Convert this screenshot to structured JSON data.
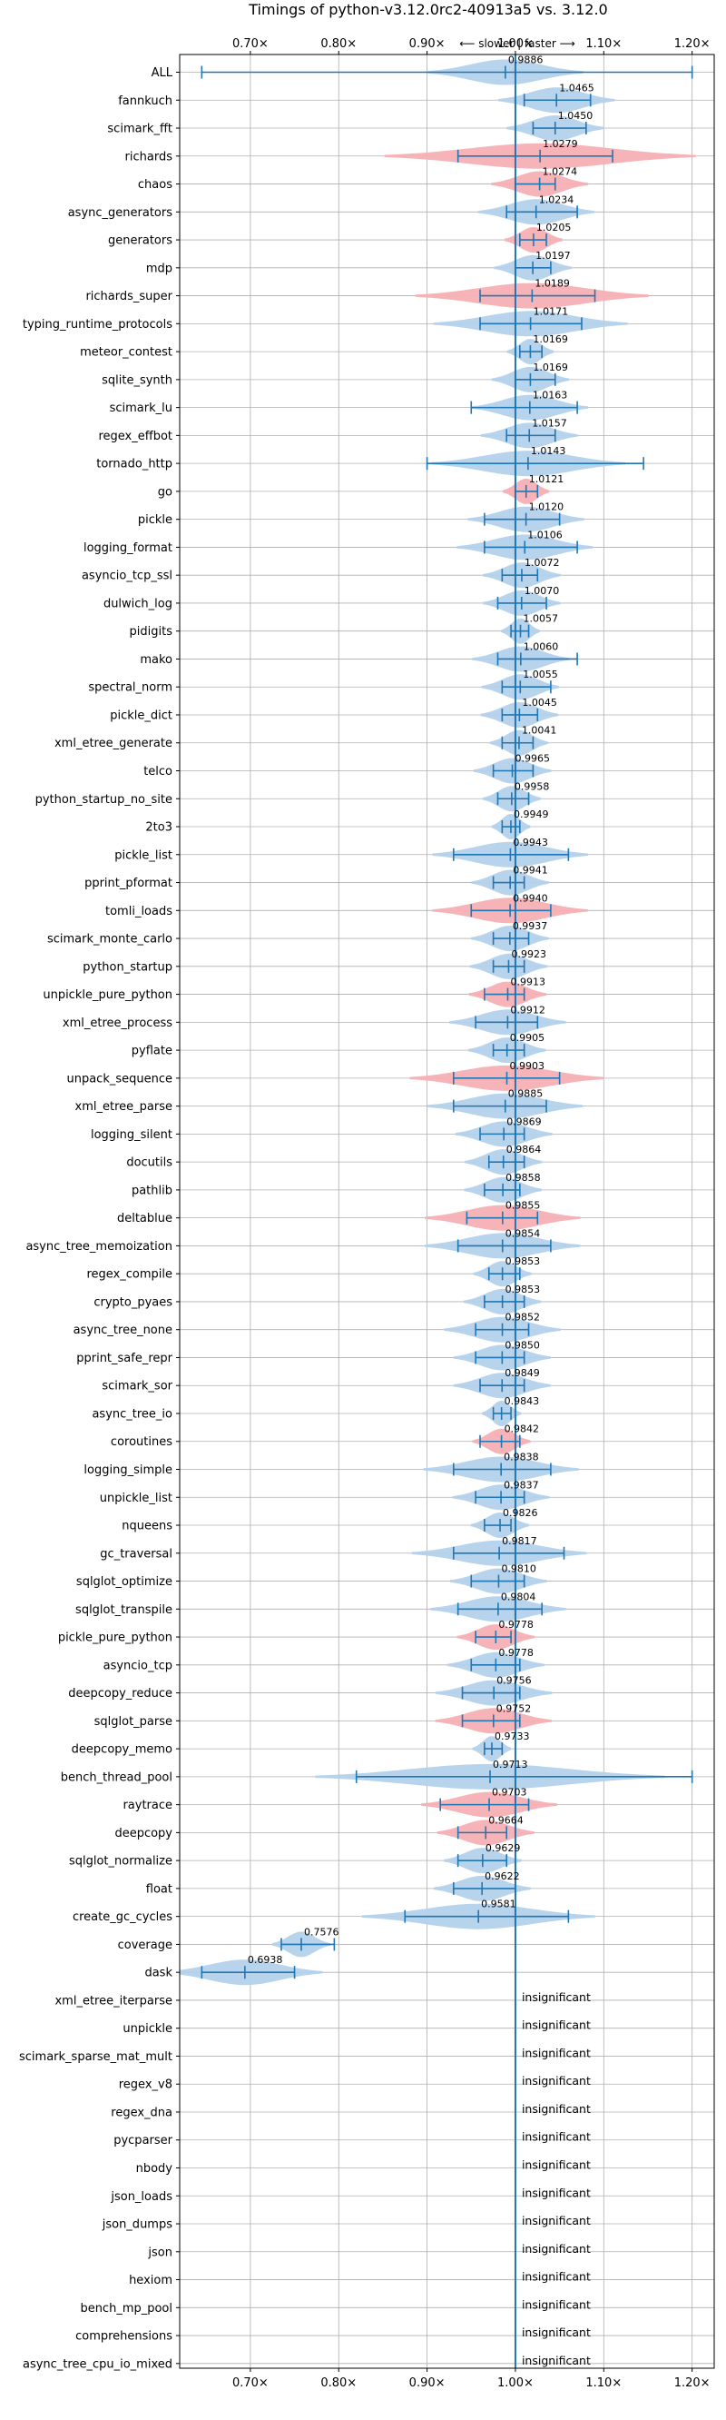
{
  "chart_data": {
    "type": "violin",
    "title": "Timings of python-v3.12.0rc2-40913a5 vs. 3.12.0",
    "direction_label": "⟵ slower | faster ⟶",
    "xlim": [
      0.62,
      1.225
    ],
    "x_ticks": [
      0.7,
      0.8,
      0.9,
      1.0,
      1.1,
      1.2
    ],
    "x_tick_labels": [
      "0.70×",
      "0.80×",
      "0.90×",
      "1.00×",
      "1.10×",
      "1.20×"
    ],
    "reference_line": 1.0,
    "grid": true,
    "colors": {
      "violin_default": "#b4d1eb",
      "violin_highlight": "#f7b0b4",
      "whisker": "#1f77b4",
      "grid": "#b0b0b0",
      "text": "#000000"
    },
    "insignificant_label": "insignificant",
    "benchmarks": [
      {
        "name": "ALL",
        "value": 0.9886,
        "min": 0.645,
        "max": 1.2,
        "spread": 0.04,
        "highlight": false,
        "significant": true
      },
      {
        "name": "fannkuch",
        "value": 1.0465,
        "min": 1.01,
        "max": 1.085,
        "spread": 0.03,
        "highlight": false,
        "significant": true
      },
      {
        "name": "scimark_fft",
        "value": 1.045,
        "min": 1.02,
        "max": 1.08,
        "spread": 0.025,
        "highlight": false,
        "significant": true
      },
      {
        "name": "richards",
        "value": 1.0279,
        "min": 0.935,
        "max": 1.11,
        "spread": 0.08,
        "highlight": true,
        "significant": true
      },
      {
        "name": "chaos",
        "value": 1.0274,
        "min": 1.0,
        "max": 1.045,
        "spread": 0.025,
        "highlight": true,
        "significant": true
      },
      {
        "name": "async_generators",
        "value": 1.0234,
        "min": 0.99,
        "max": 1.07,
        "spread": 0.03,
        "highlight": false,
        "significant": true
      },
      {
        "name": "generators",
        "value": 1.0205,
        "min": 1.005,
        "max": 1.035,
        "spread": 0.015,
        "highlight": true,
        "significant": true
      },
      {
        "name": "mdp",
        "value": 1.0197,
        "min": 1.0,
        "max": 1.04,
        "spread": 0.02,
        "highlight": false,
        "significant": true
      },
      {
        "name": "richards_super",
        "value": 1.0189,
        "min": 0.96,
        "max": 1.09,
        "spread": 0.06,
        "highlight": true,
        "significant": true
      },
      {
        "name": "typing_runtime_protocols",
        "value": 1.0171,
        "min": 0.96,
        "max": 1.075,
        "spread": 0.05,
        "highlight": false,
        "significant": true
      },
      {
        "name": "meteor_contest",
        "value": 1.0169,
        "min": 1.005,
        "max": 1.03,
        "spread": 0.012,
        "highlight": false,
        "significant": true
      },
      {
        "name": "sqlite_synth",
        "value": 1.0169,
        "min": 1.0,
        "max": 1.045,
        "spread": 0.02,
        "highlight": false,
        "significant": true
      },
      {
        "name": "scimark_lu",
        "value": 1.0163,
        "min": 0.95,
        "max": 1.07,
        "spread": 0.03,
        "highlight": false,
        "significant": true
      },
      {
        "name": "regex_effbot",
        "value": 1.0157,
        "min": 0.99,
        "max": 1.045,
        "spread": 0.025,
        "highlight": false,
        "significant": true
      },
      {
        "name": "tornado_http",
        "value": 1.0143,
        "min": 0.9,
        "max": 1.145,
        "spread": 0.05,
        "highlight": false,
        "significant": true
      },
      {
        "name": "go",
        "value": 1.0121,
        "min": 1.0,
        "max": 1.025,
        "spread": 0.012,
        "highlight": true,
        "significant": true
      },
      {
        "name": "pickle",
        "value": 1.012,
        "min": 0.965,
        "max": 1.05,
        "spread": 0.03,
        "highlight": false,
        "significant": true
      },
      {
        "name": "logging_format",
        "value": 1.0106,
        "min": 0.965,
        "max": 1.07,
        "spread": 0.035,
        "highlight": false,
        "significant": true
      },
      {
        "name": "asyncio_tcp_ssl",
        "value": 1.0072,
        "min": 0.985,
        "max": 1.025,
        "spread": 0.02,
        "highlight": false,
        "significant": true
      },
      {
        "name": "dulwich_log",
        "value": 1.007,
        "min": 0.98,
        "max": 1.035,
        "spread": 0.02,
        "highlight": false,
        "significant": true
      },
      {
        "name": "pidigits",
        "value": 1.0057,
        "min": 0.995,
        "max": 1.015,
        "spread": 0.01,
        "highlight": false,
        "significant": true
      },
      {
        "name": "mako",
        "value": 1.006,
        "min": 0.98,
        "max": 1.07,
        "spread": 0.025,
        "highlight": false,
        "significant": true
      },
      {
        "name": "spectral_norm",
        "value": 1.0055,
        "min": 0.985,
        "max": 1.04,
        "spread": 0.02,
        "highlight": false,
        "significant": true
      },
      {
        "name": "pickle_dict",
        "value": 1.0045,
        "min": 0.985,
        "max": 1.025,
        "spread": 0.02,
        "highlight": false,
        "significant": true
      },
      {
        "name": "xml_etree_generate",
        "value": 1.0041,
        "min": 0.985,
        "max": 1.02,
        "spread": 0.015,
        "highlight": false,
        "significant": true
      },
      {
        "name": "telco",
        "value": 0.9965,
        "min": 0.975,
        "max": 1.02,
        "spread": 0.02,
        "highlight": false,
        "significant": true
      },
      {
        "name": "python_startup_no_site",
        "value": 0.9958,
        "min": 0.98,
        "max": 1.015,
        "spread": 0.015,
        "highlight": false,
        "significant": true
      },
      {
        "name": "2to3",
        "value": 0.9949,
        "min": 0.985,
        "max": 1.005,
        "spread": 0.01,
        "highlight": false,
        "significant": true
      },
      {
        "name": "pickle_list",
        "value": 0.9943,
        "min": 0.93,
        "max": 1.06,
        "spread": 0.04,
        "highlight": false,
        "significant": true
      },
      {
        "name": "pprint_pformat",
        "value": 0.9941,
        "min": 0.975,
        "max": 1.01,
        "spread": 0.02,
        "highlight": false,
        "significant": true
      },
      {
        "name": "tomli_loads",
        "value": 0.994,
        "min": 0.95,
        "max": 1.04,
        "spread": 0.04,
        "highlight": true,
        "significant": true
      },
      {
        "name": "scimark_monte_carlo",
        "value": 0.9937,
        "min": 0.975,
        "max": 1.015,
        "spread": 0.02,
        "highlight": false,
        "significant": true
      },
      {
        "name": "python_startup",
        "value": 0.9923,
        "min": 0.975,
        "max": 1.01,
        "spread": 0.02,
        "highlight": false,
        "significant": true
      },
      {
        "name": "unpickle_pure_python",
        "value": 0.9913,
        "min": 0.965,
        "max": 1.01,
        "spread": 0.02,
        "highlight": true,
        "significant": true
      },
      {
        "name": "xml_etree_process",
        "value": 0.9912,
        "min": 0.955,
        "max": 1.025,
        "spread": 0.03,
        "highlight": false,
        "significant": true
      },
      {
        "name": "pyflate",
        "value": 0.9905,
        "min": 0.975,
        "max": 1.01,
        "spread": 0.02,
        "highlight": false,
        "significant": true
      },
      {
        "name": "unpack_sequence",
        "value": 0.9903,
        "min": 0.93,
        "max": 1.05,
        "spread": 0.05,
        "highlight": true,
        "significant": true
      },
      {
        "name": "xml_etree_parse",
        "value": 0.9885,
        "min": 0.93,
        "max": 1.035,
        "spread": 0.04,
        "highlight": false,
        "significant": true
      },
      {
        "name": "logging_silent",
        "value": 0.9869,
        "min": 0.96,
        "max": 1.01,
        "spread": 0.025,
        "highlight": false,
        "significant": true
      },
      {
        "name": "docutils",
        "value": 0.9864,
        "min": 0.97,
        "max": 1.01,
        "spread": 0.02,
        "highlight": false,
        "significant": true
      },
      {
        "name": "pathlib",
        "value": 0.9858,
        "min": 0.965,
        "max": 1.005,
        "spread": 0.02,
        "highlight": false,
        "significant": true
      },
      {
        "name": "deltablue",
        "value": 0.9855,
        "min": 0.945,
        "max": 1.025,
        "spread": 0.04,
        "highlight": true,
        "significant": true
      },
      {
        "name": "async_tree_memoization",
        "value": 0.9854,
        "min": 0.935,
        "max": 1.04,
        "spread": 0.04,
        "highlight": false,
        "significant": true
      },
      {
        "name": "regex_compile",
        "value": 0.9853,
        "min": 0.97,
        "max": 1.005,
        "spread": 0.015,
        "highlight": false,
        "significant": true
      },
      {
        "name": "crypto_pyaes",
        "value": 0.9853,
        "min": 0.965,
        "max": 1.01,
        "spread": 0.02,
        "highlight": false,
        "significant": true
      },
      {
        "name": "async_tree_none",
        "value": 0.9852,
        "min": 0.955,
        "max": 1.015,
        "spread": 0.03,
        "highlight": false,
        "significant": true
      },
      {
        "name": "pprint_safe_repr",
        "value": 0.985,
        "min": 0.955,
        "max": 1.01,
        "spread": 0.025,
        "highlight": false,
        "significant": true
      },
      {
        "name": "scimark_sor",
        "value": 0.9849,
        "min": 0.96,
        "max": 1.01,
        "spread": 0.025,
        "highlight": false,
        "significant": true
      },
      {
        "name": "async_tree_io",
        "value": 0.9843,
        "min": 0.975,
        "max": 0.995,
        "spread": 0.01,
        "highlight": false,
        "significant": true
      },
      {
        "name": "coroutines",
        "value": 0.9842,
        "min": 0.96,
        "max": 1.005,
        "spread": 0.015,
        "highlight": true,
        "significant": true
      },
      {
        "name": "logging_simple",
        "value": 0.9838,
        "min": 0.93,
        "max": 1.04,
        "spread": 0.04,
        "highlight": false,
        "significant": true
      },
      {
        "name": "unpickle_list",
        "value": 0.9837,
        "min": 0.955,
        "max": 1.01,
        "spread": 0.025,
        "highlight": false,
        "significant": true
      },
      {
        "name": "nqueens",
        "value": 0.9826,
        "min": 0.965,
        "max": 0.995,
        "spread": 0.015,
        "highlight": false,
        "significant": true
      },
      {
        "name": "gc_traversal",
        "value": 0.9817,
        "min": 0.93,
        "max": 1.055,
        "spread": 0.045,
        "highlight": false,
        "significant": true
      },
      {
        "name": "sqlglot_optimize",
        "value": 0.981,
        "min": 0.95,
        "max": 1.01,
        "spread": 0.025,
        "highlight": false,
        "significant": true
      },
      {
        "name": "sqlglot_transpile",
        "value": 0.9804,
        "min": 0.935,
        "max": 1.03,
        "spread": 0.035,
        "highlight": false,
        "significant": true
      },
      {
        "name": "pickle_pure_python",
        "value": 0.9778,
        "min": 0.955,
        "max": 0.995,
        "spread": 0.02,
        "highlight": true,
        "significant": true
      },
      {
        "name": "asyncio_tcp",
        "value": 0.9778,
        "min": 0.95,
        "max": 1.005,
        "spread": 0.025,
        "highlight": false,
        "significant": true
      },
      {
        "name": "deepcopy_reduce",
        "value": 0.9756,
        "min": 0.94,
        "max": 1.005,
        "spread": 0.03,
        "highlight": false,
        "significant": true
      },
      {
        "name": "sqlglot_parse",
        "value": 0.9752,
        "min": 0.94,
        "max": 1.005,
        "spread": 0.03,
        "highlight": true,
        "significant": true
      },
      {
        "name": "deepcopy_memo",
        "value": 0.9733,
        "min": 0.965,
        "max": 0.985,
        "spread": 0.01,
        "highlight": false,
        "significant": true
      },
      {
        "name": "bench_thread_pool",
        "value": 0.9713,
        "min": 0.82,
        "max": 1.2,
        "spread": 0.09,
        "highlight": false,
        "significant": true
      },
      {
        "name": "raytrace",
        "value": 0.9703,
        "min": 0.915,
        "max": 1.015,
        "spread": 0.035,
        "highlight": true,
        "significant": true
      },
      {
        "name": "deepcopy",
        "value": 0.9664,
        "min": 0.935,
        "max": 0.99,
        "spread": 0.025,
        "highlight": true,
        "significant": true
      },
      {
        "name": "sqlglot_normalize",
        "value": 0.9629,
        "min": 0.935,
        "max": 0.99,
        "spread": 0.02,
        "highlight": false,
        "significant": true
      },
      {
        "name": "float",
        "value": 0.9622,
        "min": 0.93,
        "max": 1.0,
        "spread": 0.025,
        "highlight": false,
        "significant": true
      },
      {
        "name": "create_gc_cycles",
        "value": 0.9581,
        "min": 0.875,
        "max": 1.06,
        "spread": 0.06,
        "highlight": false,
        "significant": true
      },
      {
        "name": "coverage",
        "value": 0.7576,
        "min": 0.735,
        "max": 0.795,
        "spread": 0.015,
        "highlight": false,
        "significant": true
      },
      {
        "name": "dask",
        "value": 0.6938,
        "min": 0.645,
        "max": 0.75,
        "spread": 0.04,
        "highlight": false,
        "significant": true
      },
      {
        "name": "xml_etree_iterparse",
        "significant": false
      },
      {
        "name": "unpickle",
        "significant": false
      },
      {
        "name": "scimark_sparse_mat_mult",
        "significant": false
      },
      {
        "name": "regex_v8",
        "significant": false
      },
      {
        "name": "regex_dna",
        "significant": false
      },
      {
        "name": "pycparser",
        "significant": false
      },
      {
        "name": "nbody",
        "significant": false
      },
      {
        "name": "json_loads",
        "significant": false
      },
      {
        "name": "json_dumps",
        "significant": false
      },
      {
        "name": "json",
        "significant": false
      },
      {
        "name": "hexiom",
        "significant": false
      },
      {
        "name": "bench_mp_pool",
        "significant": false
      },
      {
        "name": "comprehensions",
        "significant": false
      },
      {
        "name": "async_tree_cpu_io_mixed",
        "significant": false
      }
    ]
  }
}
